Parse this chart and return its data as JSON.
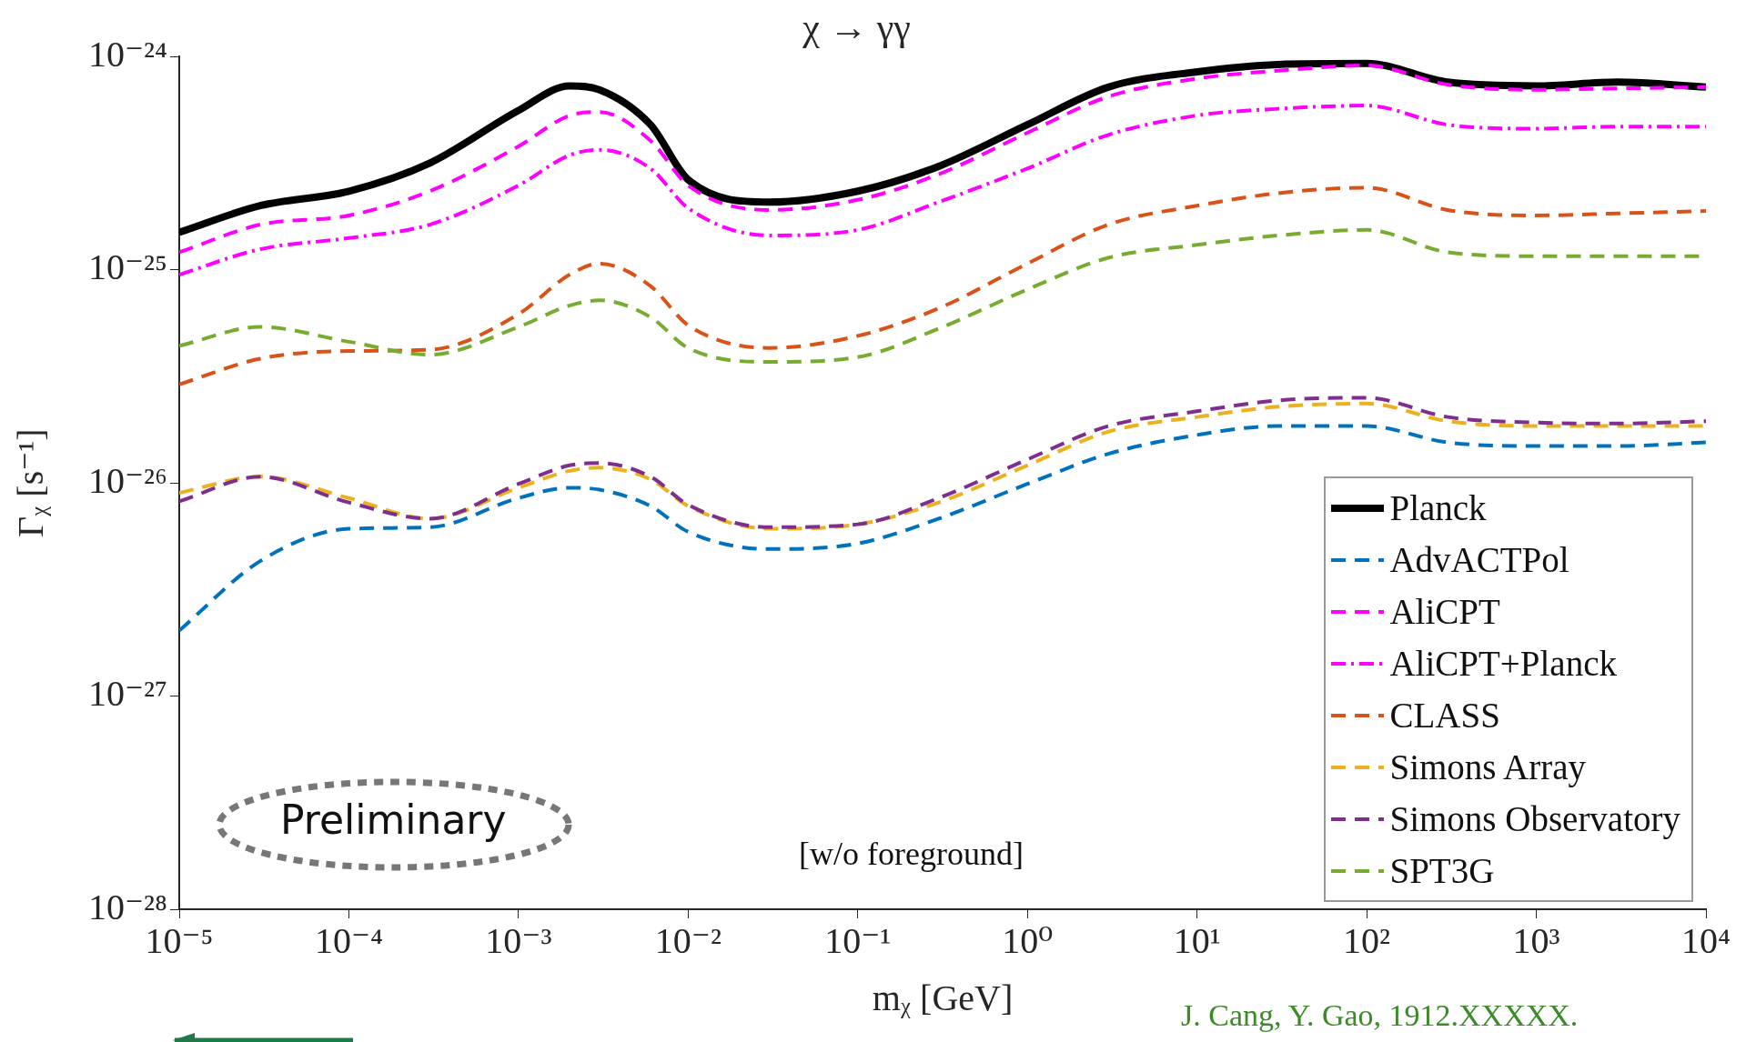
{
  "chart_data": {
    "type": "line",
    "title": "χ → γγ",
    "xlabel": "mᵪ [GeV]",
    "ylabel": "Γᵪ [s⁻¹]",
    "log": "xy",
    "grid": false,
    "legend": "bottom right",
    "marker": "none",
    "xlim": [
      1e-05,
      10000
    ],
    "ylim": [
      1e-28,
      1e-24
    ],
    "xticks": [
      {
        "value": 1e-05,
        "label": "10⁻⁵"
      },
      {
        "value": 0.0001,
        "label": "10⁻⁴"
      },
      {
        "value": 0.001,
        "label": "10⁻³"
      },
      {
        "value": 0.01,
        "label": "10⁻²"
      },
      {
        "value": 0.1,
        "label": "10⁻¹"
      },
      {
        "value": 1,
        "label": "10⁰"
      },
      {
        "value": 10,
        "label": "10¹"
      },
      {
        "value": 100,
        "label": "10²"
      },
      {
        "value": 1000,
        "label": "10³"
      },
      {
        "value": 10000,
        "label": "10⁴"
      }
    ],
    "yticks": [
      {
        "value": 1e-28,
        "label": "10⁻²⁸"
      },
      {
        "value": 1e-27,
        "label": "10⁻²⁷"
      },
      {
        "value": 1e-26,
        "label": "10⁻²⁶"
      },
      {
        "value": 1e-25,
        "label": "10⁻²⁵"
      },
      {
        "value": 1e-24,
        "label": "10⁻²⁴"
      }
    ],
    "x": [
      1e-05,
      3e-05,
      0.0001,
      0.0003,
      0.001,
      0.002,
      0.003,
      0.006,
      0.01,
      0.03,
      0.1,
      0.3,
      1,
      3,
      10,
      30,
      100,
      300,
      1000,
      3000,
      10000
    ],
    "annotations": [
      "Preliminary",
      "[w/o foreground]",
      "J. Cang, Y. Gao,  1912.XXXXX."
    ],
    "series": [
      {
        "name": "Planck",
        "color": "#000000",
        "line_style": "solid",
        "values": [
          1.5e-25,
          2e-25,
          2.34e-25,
          3.17e-25,
          5.6e-25,
          7.3e-25,
          7e-25,
          4.8e-25,
          2.65e-25,
          2.08e-25,
          2.34e-25,
          3.06e-25,
          4.8e-25,
          7.2e-25,
          8.5e-25,
          9.2e-25,
          9.3e-25,
          7.6e-25,
          7.3e-25,
          7.6e-25,
          7.2e-25
        ]
      },
      {
        "name": "AdvACTPol",
        "color": "#0072bd",
        "line_style": "dashed",
        "values": [
          2.03e-27,
          4.3e-27,
          6.1e-27,
          6.2e-27,
          8.5e-27,
          9.5e-27,
          9.3e-27,
          7.8e-27,
          5.9e-27,
          4.9e-27,
          5.2e-27,
          6.8e-27,
          9.9e-27,
          1.37e-26,
          1.68e-26,
          1.85e-26,
          1.85e-26,
          1.55e-26,
          1.49e-26,
          1.49e-26,
          1.55e-26
        ]
      },
      {
        "name": "AliCPT",
        "color": "#ff00ff",
        "line_style": "dashed",
        "values": [
          1.21e-25,
          1.63e-25,
          1.8e-25,
          2.34e-25,
          3.8e-25,
          5.3e-25,
          5.5e-25,
          4.04e-25,
          2.49e-25,
          1.91e-25,
          2.13e-25,
          2.81e-25,
          4.4e-25,
          6.5e-25,
          7.9e-25,
          8.6e-25,
          9.1e-25,
          7.4e-25,
          7e-25,
          7.1e-25,
          7.2e-25
        ]
      },
      {
        "name": "AliCPT+Planck",
        "color": "#ff00ff",
        "line_style": "dashdot",
        "values": [
          9.5e-26,
          1.25e-25,
          1.41e-25,
          1.63e-25,
          2.49e-25,
          3.45e-25,
          3.66e-25,
          2.99e-25,
          1.95e-25,
          1.45e-25,
          1.54e-25,
          2.08e-25,
          2.99e-25,
          4.3e-25,
          5.3e-25,
          5.7e-25,
          5.9e-25,
          4.8e-25,
          4.6e-25,
          4.7e-25,
          4.7e-25
        ]
      },
      {
        "name": "CLASS",
        "color": "#d95319",
        "line_style": "dashed",
        "values": [
          2.9e-26,
          3.83e-26,
          4.16e-26,
          4.22e-26,
          6.2e-26,
          9.5e-26,
          1.07e-25,
          8.4e-26,
          5.5e-26,
          4.3e-26,
          4.9e-26,
          6.6e-26,
          1.07e-25,
          1.63e-25,
          2e-25,
          2.29e-25,
          2.43e-25,
          1.91e-25,
          1.8e-25,
          1.84e-25,
          1.89e-25
        ]
      },
      {
        "name": "Simons Array",
        "color": "#edb120",
        "line_style": "dashed",
        "values": [
          9e-27,
          1.07e-26,
          8.5e-27,
          6.8e-27,
          9.5e-27,
          1.14e-26,
          1.18e-26,
          1.04e-26,
          7.8e-27,
          6.1e-27,
          6.4e-27,
          8.1e-27,
          1.21e-26,
          1.74e-26,
          2.04e-26,
          2.28e-26,
          2.36e-26,
          1.95e-26,
          1.85e-26,
          1.85e-26,
          1.85e-26
        ]
      },
      {
        "name": "Simons Observatory",
        "color": "#7e2f8e",
        "line_style": "dashed",
        "values": [
          8.2e-27,
          1.07e-26,
          8.1e-27,
          6.8e-27,
          9.9e-27,
          1.21e-26,
          1.24e-26,
          1.07e-26,
          7.9e-27,
          6.2e-27,
          6.4e-27,
          8.5e-27,
          1.29e-26,
          1.85e-26,
          2.17e-26,
          2.44e-26,
          2.51e-26,
          2.04e-26,
          1.92e-26,
          1.9e-26,
          1.95e-26
        ]
      },
      {
        "name": "SPT3G",
        "color": "#77ac30",
        "line_style": "dashed",
        "values": [
          4.4e-26,
          5.4e-26,
          4.6e-26,
          4e-26,
          5.4e-26,
          6.8e-26,
          7.2e-26,
          6e-26,
          4.3e-26,
          3.7e-26,
          3.9e-26,
          5.3e-26,
          8.1e-26,
          1.14e-25,
          1.31e-25,
          1.45e-25,
          1.54e-25,
          1.21e-25,
          1.16e-25,
          1.16e-25,
          1.16e-25
        ]
      }
    ]
  }
}
